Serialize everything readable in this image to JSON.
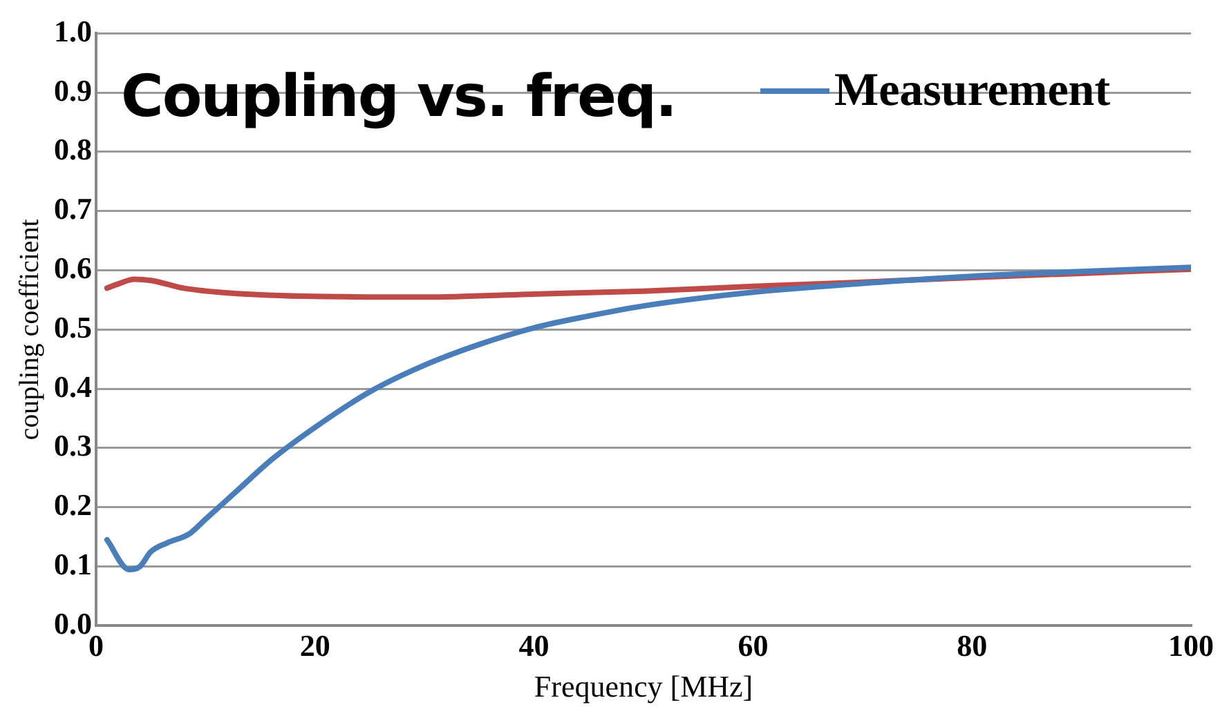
{
  "chart_data": {
    "type": "line",
    "title": "Coupling vs. freq.",
    "xlabel": "Frequency [MHz]",
    "ylabel": "coupling coefficient",
    "xlim": [
      0,
      100
    ],
    "xticks": [
      0,
      20,
      40,
      60,
      80,
      100
    ],
    "ylim": [
      0,
      1
    ],
    "yticks": [
      {
        "value": 0,
        "label": "0.0"
      },
      0.1,
      0.2,
      0.3,
      0.4,
      0.5,
      0.6,
      0.7,
      0.8,
      0.9,
      {
        "value": 1,
        "label": "1.0"
      }
    ],
    "grid": "y",
    "legend": "top right",
    "marker": "none",
    "line_style": "solid",
    "series": [
      {
        "name": "Measurement",
        "color": "#4a7ebb",
        "x": [
          1,
          3,
          4,
          5,
          6.5,
          8.5,
          10,
          13,
          16,
          20,
          25,
          30,
          35,
          40,
          45,
          50,
          60,
          70,
          80,
          90,
          100
        ],
        "values": [
          0.145,
          0.095,
          0.1,
          0.125,
          0.14,
          0.155,
          0.18,
          0.23,
          0.28,
          0.335,
          0.395,
          0.44,
          0.475,
          0.503,
          0.523,
          0.54,
          0.563,
          0.578,
          0.59,
          0.598,
          0.605
        ]
      },
      {
        "color": "#be4b48",
        "x": [
          1,
          2,
          3.5,
          5,
          8,
          12,
          20,
          30,
          40,
          50,
          60,
          70,
          80,
          90,
          100
        ],
        "values": [
          0.57,
          0.577,
          0.585,
          0.583,
          0.57,
          0.562,
          0.556,
          0.555,
          0.56,
          0.565,
          0.573,
          0.58,
          0.588,
          0.595,
          0.602
        ]
      }
    ]
  }
}
